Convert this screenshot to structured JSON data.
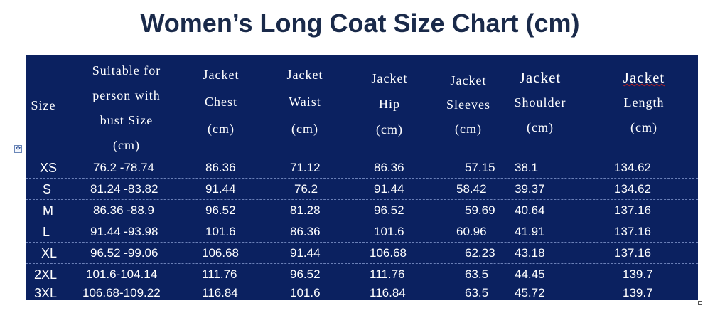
{
  "title": "Women’s Long Coat Size Chart (cm)",
  "colors": {
    "table_bg": "#0b2160",
    "title": "#1a2a4a",
    "text": "#ffffff"
  },
  "header": {
    "size": "Size",
    "bust": [
      "Suitable for",
      "person with",
      "bust Size",
      "(cm)"
    ],
    "chest": [
      "Jacket",
      "Chest",
      "(cm)"
    ],
    "waist": [
      "Jacket",
      "Waist",
      "(cm)"
    ],
    "hip": [
      "Jacket",
      "Hip",
      "(cm)"
    ],
    "sleeves": [
      "Jacket",
      "Sleeves",
      "(cm)"
    ],
    "shoulder": [
      "Jacket",
      "Shoulder",
      "(cm)"
    ],
    "length": [
      "Jacket",
      "Length",
      "(cm)"
    ]
  },
  "rows": [
    {
      "size": "XS",
      "bust": "76.2 -78.74",
      "chest": "86.36",
      "waist": "71.12",
      "hip": "86.36",
      "sleeves": "57.15",
      "shoulder": "38.1",
      "length": "134.62"
    },
    {
      "size": "S",
      "bust": "81.24 -83.82",
      "chest": "91.44",
      "waist": "76.2",
      "hip": "91.44",
      "sleeves": "58.42",
      "shoulder": "39.37",
      "length": "134.62"
    },
    {
      "size": "M",
      "bust": "86.36 -88.9",
      "chest": "96.52",
      "waist": "81.28",
      "hip": "96.52",
      "sleeves": "59.69",
      "shoulder": "40.64",
      "length": "137.16"
    },
    {
      "size": "L",
      "bust": "91.44 -93.98",
      "chest": "101.6",
      "waist": "86.36",
      "hip": "101.6",
      "sleeves": "60.96",
      "shoulder": "41.91",
      "length": "137.16"
    },
    {
      "size": "XL",
      "bust": "96.52 -99.06",
      "chest": "106.68",
      "waist": "91.44",
      "hip": "106.68",
      "sleeves": "62.23",
      "shoulder": "43.18",
      "length": "137.16"
    },
    {
      "size": "2XL",
      "bust": "101.6-104.14",
      "chest": "111.76",
      "waist": "96.52",
      "hip": "111.76",
      "sleeves": "63.5",
      "shoulder": "44.45",
      "length": "139.7"
    },
    {
      "size": "3XL",
      "bust": "106.68-109.22",
      "chest": "116.84",
      "waist": "101.6",
      "hip": "116.84",
      "sleeves": "63.5",
      "shoulder": "45.72",
      "length": "139.7"
    }
  ]
}
